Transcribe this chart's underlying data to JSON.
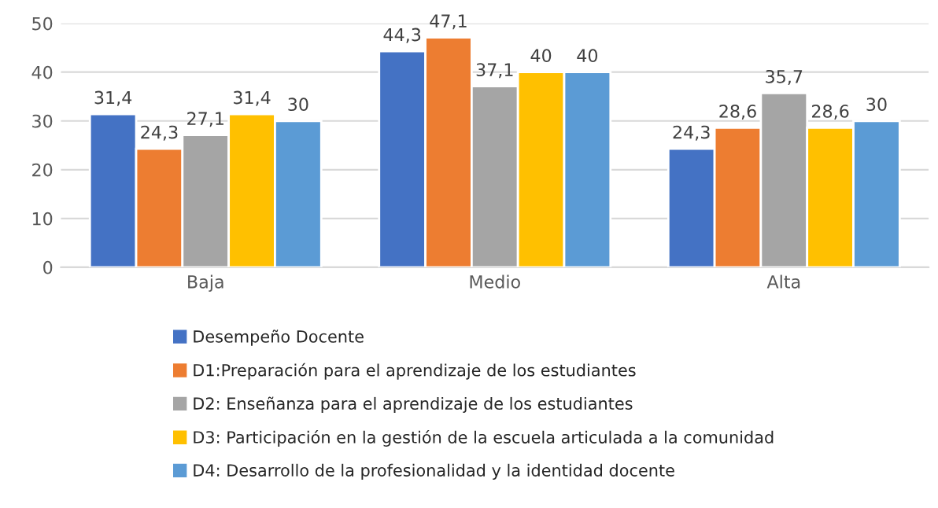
{
  "chart_data": {
    "type": "bar",
    "categories": [
      "Baja",
      "Medio",
      "Alta"
    ],
    "series": [
      {
        "name": "Desempeño Docente",
        "color": "#4472c4",
        "values": [
          31.4,
          44.3,
          24.3
        ],
        "value_labels": [
          "31,4",
          "44,3",
          "24,3"
        ]
      },
      {
        "name": "D1:Preparación para el aprendizaje de los estudiantes",
        "color": "#ed7d31",
        "values": [
          24.3,
          47.1,
          28.6
        ],
        "value_labels": [
          "24,3",
          "47,1",
          "28,6"
        ]
      },
      {
        "name": "D2: Enseñanza para el aprendizaje de los estudiantes",
        "color": "#a5a5a5",
        "values": [
          27.1,
          37.1,
          35.7
        ],
        "value_labels": [
          "27,1",
          "37,1",
          "35,7"
        ]
      },
      {
        "name": "D3: Participación en la gestión de la escuela articulada a la comunidad",
        "color": "#ffc000",
        "values": [
          31.4,
          40,
          28.6
        ],
        "value_labels": [
          "31,4",
          "40",
          "28,6"
        ]
      },
      {
        "name": "D4: Desarrollo de la profesionalidad y la identidad docente",
        "color": "#5b9bd5",
        "values": [
          30,
          40,
          30
        ],
        "value_labels": [
          "30",
          "40",
          "30"
        ]
      }
    ],
    "ylim": [
      0,
      50
    ],
    "yticks": [
      0,
      10,
      20,
      30,
      40,
      50
    ],
    "grid": "y",
    "legend": "bottom"
  }
}
